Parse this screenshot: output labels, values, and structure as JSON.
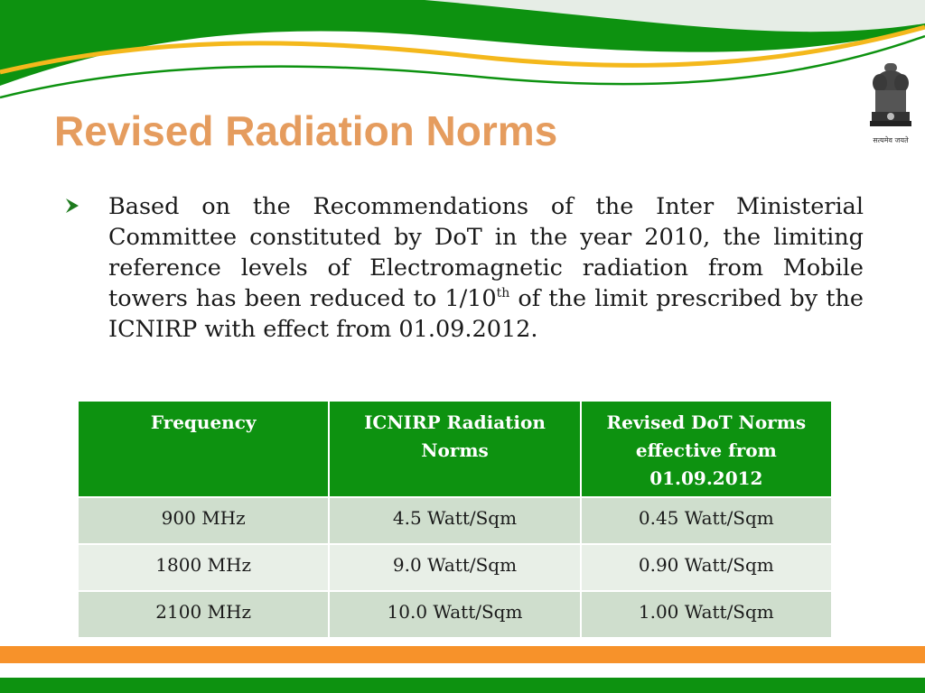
{
  "slide": {
    "title": "Revised Radiation Norms",
    "emblem_caption": "सत्यमेव जयते",
    "bullet": {
      "text_before_sup": "Based on the Recommendations of the Inter Ministerial Committee constituted by DoT in the year 2010, the limiting reference levels of Electromagnetic radiation from Mobile towers has been reduced to 1/10",
      "sup": "th",
      "text_after_sup": " of the limit prescribed by the ICNIRP with effect from 01.09.2012."
    },
    "table": {
      "headers": [
        "Frequency",
        "ICNIRP Radiation Norms",
        "Revised DoT Norms effective from 01.09.2012"
      ],
      "rows": [
        [
          "900 MHz",
          "4.5 Watt/Sqm",
          "0.45 Watt/Sqm"
        ],
        [
          "1800 MHz",
          "9.0 Watt/Sqm",
          "0.90 Watt/Sqm"
        ],
        [
          "2100 MHz",
          "10.0 Watt/Sqm",
          "1.00 Watt/Sqm"
        ]
      ]
    }
  },
  "colors": {
    "green": "#0d9210",
    "orange": "#f7922a",
    "yellow": "#f4b81c",
    "title": "#e59c5e",
    "row_dark": "#cfdecd",
    "row_light": "#e8efe7"
  }
}
